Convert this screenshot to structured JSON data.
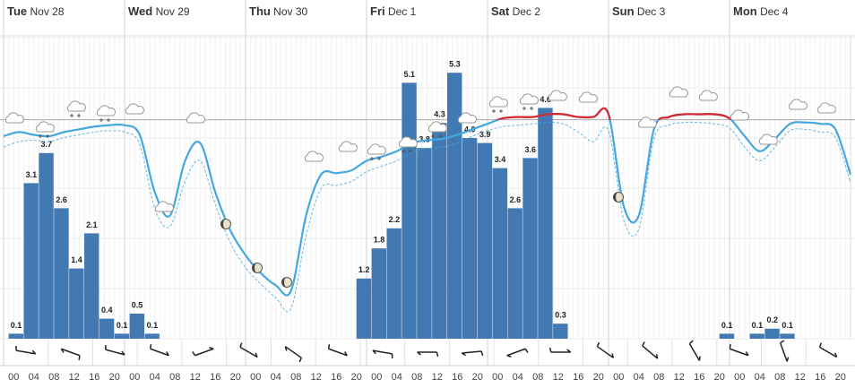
{
  "chart_data": {
    "type": "meteogram",
    "days": [
      {
        "weekday": "Tue",
        "date": "Nov 28"
      },
      {
        "weekday": "Wed",
        "date": "Nov 29"
      },
      {
        "weekday": "Thu",
        "date": "Nov 30"
      },
      {
        "weekday": "Fri",
        "date": "Dec 1"
      },
      {
        "weekday": "Sat",
        "date": "Dec 2"
      },
      {
        "weekday": "Sun",
        "date": "Dec 3"
      },
      {
        "weekday": "Mon",
        "date": "Dec 4"
      }
    ],
    "hours": [
      "00",
      "04",
      "08",
      "12",
      "16",
      "20"
    ],
    "precipitation": {
      "color": "#4379b3",
      "ylim": [
        0,
        6
      ],
      "yticks": [
        0,
        1,
        2,
        3,
        4,
        5,
        6
      ],
      "values": [
        0.1,
        3.1,
        3.7,
        2.6,
        1.4,
        2.1,
        0.4,
        0.1,
        0.5,
        0.1,
        null,
        null,
        null,
        null,
        null,
        null,
        null,
        null,
        null,
        null,
        null,
        null,
        null,
        1.2,
        1.8,
        2.2,
        5.1,
        3.8,
        4.3,
        5.3,
        4.0,
        3.9,
        3.4,
        2.6,
        3.6,
        4.6,
        0.3,
        null,
        null,
        null,
        null,
        null,
        null,
        null,
        null,
        null,
        null,
        0.1,
        null,
        0.1,
        0.2,
        0.1,
        null,
        null,
        null,
        null
      ],
      "value_labels": [
        "0.1",
        "3.1",
        "3.7",
        "2.6",
        "1.4",
        "2.1",
        "0.4",
        "0.1",
        "0.5",
        "0.1",
        null,
        null,
        null,
        null,
        null,
        null,
        null,
        null,
        null,
        null,
        null,
        null,
        null,
        "1.2",
        "1.8",
        "2.2",
        "5.1",
        "3.8",
        "4.3",
        "5.3",
        "4.0",
        "3.9",
        "3.4",
        "2.6",
        "3.6",
        "4.6",
        "0.3",
        null,
        null,
        null,
        null,
        null,
        null,
        null,
        null,
        null,
        null,
        "0.1",
        null,
        "0.1",
        "0.2",
        "0.1",
        null,
        null,
        null,
        null
      ]
    },
    "temperature": {
      "color": "#45a7e0",
      "above_color": "#d9252b",
      "ylim": [
        -16,
        6
      ],
      "reference_line": 0,
      "values": [
        -1.2,
        -0.9,
        -1.1,
        -1.2,
        -0.9,
        -0.7,
        -0.5,
        -0.4,
        -0.4,
        -1.1,
        -5.3,
        -7.0,
        -3.0,
        -1.7,
        -5.3,
        -8.1,
        -9.9,
        -11.2,
        -12.1,
        -12.5,
        -7.0,
        -4.0,
        -3.9,
        -3.7,
        -3.0,
        -2.7,
        -2.3,
        -1.7,
        -1.5,
        -1.4,
        -1.1,
        -0.7,
        -0.3,
        0.1,
        0.2,
        0.2,
        0.4,
        0.4,
        0.2,
        0.2,
        0.4,
        -6.3,
        -7.0,
        -0.7,
        0.2,
        0.4,
        0.4,
        0.4,
        0.1,
        -1.2,
        -2.3,
        -1.4,
        -0.3,
        -0.2,
        -0.3,
        -0.7,
        -4.0
      ],
      "feels_like": [
        -2.0,
        -1.6,
        -1.5,
        -1.6,
        -1.3,
        -1.1,
        -0.9,
        -0.8,
        -0.9,
        -1.8,
        -6.5,
        -7.8,
        -4.5,
        -3.0,
        -6.2,
        -9.0,
        -10.8,
        -12.0,
        -13.0,
        -13.8,
        -8.5,
        -5.0,
        -4.8,
        -4.5,
        -3.8,
        -3.4,
        -3.0,
        -2.4,
        -2.1,
        -2.0,
        -1.7,
        -1.2,
        -0.8,
        -0.5,
        -0.4,
        -0.3,
        -0.2,
        -0.3,
        -0.9,
        -1.6,
        -0.8,
        -7.3,
        -8.0,
        -1.4,
        -0.4,
        -0.2,
        -0.2,
        -0.3,
        -0.6,
        -2.0,
        -3.0,
        -2.0,
        -0.8,
        -0.7,
        -0.9,
        -1.3,
        -4.6
      ]
    },
    "wind_direction": [
      10,
      200,
      15,
      20,
      340,
      30,
      215,
      20,
      190,
      180,
      175,
      160,
      0,
      35,
      40,
      60,
      20,
      70,
      30
    ]
  }
}
